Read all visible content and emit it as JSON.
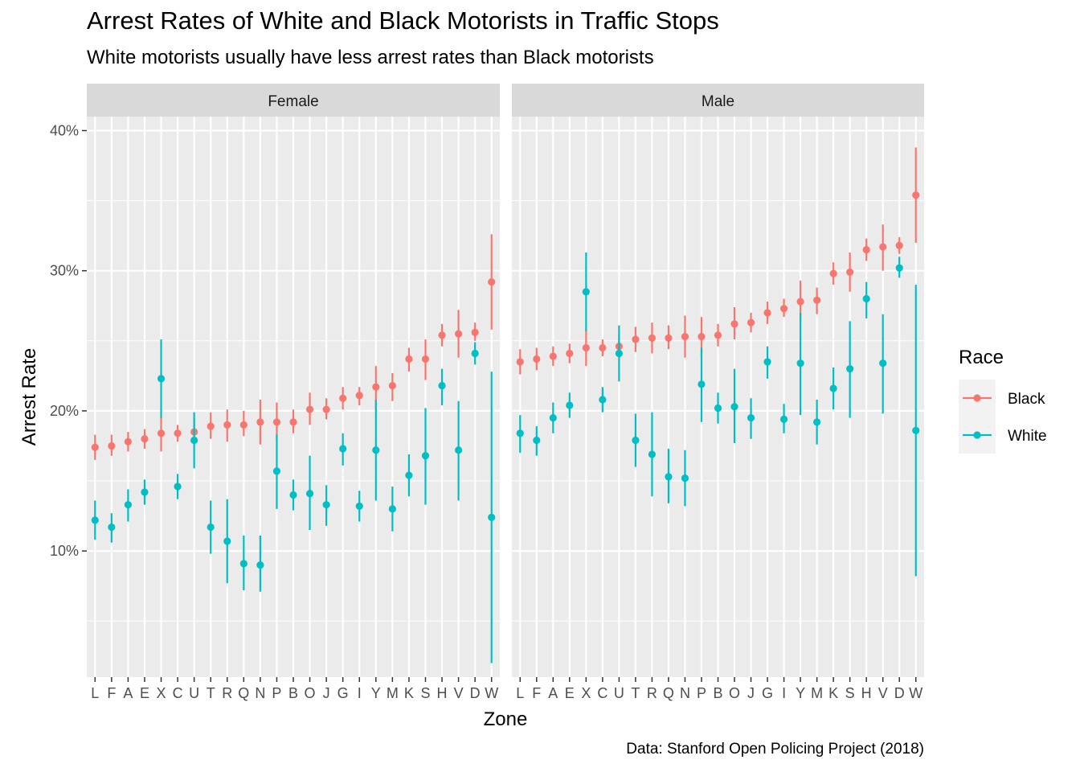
{
  "header": {
    "title": "Arrest Rates of White and Black Motorists in Traffic Stops",
    "subtitle": "White motorists usually have less arrest rates than Black motorists"
  },
  "caption": "Data: Stanford Open Policing Project (2018)",
  "legend": {
    "title": "Race",
    "position": "right",
    "items": [
      {
        "label": "Black",
        "color": "#F8766D"
      },
      {
        "label": "White",
        "color": "#00BFC4"
      }
    ]
  },
  "chart_data": {
    "type": "pointrange",
    "xlabel": "Zone",
    "ylabel": "Arrest Rate",
    "ylim": [
      0.01,
      0.41
    ],
    "y_ticks": [
      0.1,
      0.2,
      0.3,
      0.4
    ],
    "y_tick_labels": [
      "10%",
      "20%",
      "30%",
      "40%"
    ],
    "grid": true,
    "categories": [
      "L",
      "F",
      "A",
      "E",
      "X",
      "C",
      "U",
      "T",
      "R",
      "Q",
      "N",
      "P",
      "B",
      "O",
      "J",
      "G",
      "I",
      "Y",
      "M",
      "K",
      "S",
      "H",
      "V",
      "D",
      "W"
    ],
    "panels": [
      {
        "name": "Female",
        "series": [
          {
            "name": "Black",
            "color": "#F8766D",
            "values": [
              0.174,
              0.175,
              0.178,
              0.18,
              0.184,
              0.184,
              0.185,
              0.189,
              0.19,
              0.19,
              0.192,
              0.192,
              0.192,
              0.201,
              0.201,
              0.209,
              0.211,
              0.217,
              0.218,
              0.237,
              0.237,
              0.254,
              0.255,
              0.256,
              0.292
            ],
            "lower": [
              0.165,
              0.168,
              0.171,
              0.173,
              0.171,
              0.178,
              0.177,
              0.18,
              0.178,
              0.182,
              0.176,
              0.178,
              0.184,
              0.19,
              0.194,
              0.201,
              0.204,
              0.201,
              0.207,
              0.228,
              0.222,
              0.246,
              0.238,
              0.25,
              0.258
            ],
            "upper": [
              0.183,
              0.183,
              0.185,
              0.187,
              0.197,
              0.19,
              0.194,
              0.199,
              0.201,
              0.2,
              0.208,
              0.206,
              0.201,
              0.213,
              0.209,
              0.217,
              0.217,
              0.232,
              0.227,
              0.245,
              0.251,
              0.262,
              0.272,
              0.263,
              0.326
            ]
          },
          {
            "name": "White",
            "color": "#00BFC4",
            "values": [
              0.122,
              0.117,
              0.133,
              0.142,
              0.223,
              0.146,
              0.179,
              0.117,
              0.107,
              0.091,
              0.09,
              0.157,
              0.14,
              0.141,
              0.133,
              0.173,
              0.132,
              0.172,
              0.13,
              0.154,
              0.168,
              0.218,
              0.172,
              0.241,
              0.124
            ],
            "lower": [
              0.108,
              0.106,
              0.121,
              0.133,
              0.195,
              0.137,
              0.159,
              0.098,
              0.077,
              0.072,
              0.071,
              0.13,
              0.129,
              0.115,
              0.118,
              0.161,
              0.121,
              0.136,
              0.114,
              0.139,
              0.133,
              0.204,
              0.136,
              0.233,
              0.02
            ],
            "upper": [
              0.136,
              0.127,
              0.144,
              0.151,
              0.251,
              0.155,
              0.199,
              0.136,
              0.137,
              0.111,
              0.111,
              0.183,
              0.151,
              0.168,
              0.147,
              0.184,
              0.143,
              0.208,
              0.146,
              0.169,
              0.202,
              0.23,
              0.207,
              0.249,
              0.228
            ]
          }
        ]
      },
      {
        "name": "Male",
        "series": [
          {
            "name": "Black",
            "color": "#F8766D",
            "values": [
              0.235,
              0.237,
              0.239,
              0.241,
              0.245,
              0.245,
              0.246,
              0.251,
              0.252,
              0.252,
              0.253,
              0.253,
              0.254,
              0.262,
              0.263,
              0.27,
              0.273,
              0.278,
              0.279,
              0.298,
              0.299,
              0.315,
              0.317,
              0.318,
              0.354
            ],
            "lower": [
              0.226,
              0.229,
              0.232,
              0.234,
              0.232,
              0.239,
              0.238,
              0.242,
              0.241,
              0.244,
              0.238,
              0.239,
              0.246,
              0.251,
              0.256,
              0.262,
              0.267,
              0.263,
              0.269,
              0.29,
              0.285,
              0.307,
              0.3,
              0.312,
              0.32
            ],
            "upper": [
              0.244,
              0.245,
              0.246,
              0.248,
              0.258,
              0.251,
              0.255,
              0.26,
              0.263,
              0.261,
              0.268,
              0.267,
              0.262,
              0.274,
              0.27,
              0.278,
              0.28,
              0.293,
              0.288,
              0.306,
              0.313,
              0.323,
              0.333,
              0.324,
              0.388
            ]
          },
          {
            "name": "White",
            "color": "#00BFC4",
            "values": [
              0.184,
              0.179,
              0.195,
              0.204,
              0.285,
              0.208,
              0.241,
              0.179,
              0.169,
              0.153,
              0.152,
              0.219,
              0.202,
              0.203,
              0.195,
              0.235,
              0.194,
              0.234,
              0.192,
              0.216,
              0.23,
              0.28,
              0.234,
              0.302,
              0.186
            ],
            "lower": [
              0.17,
              0.168,
              0.184,
              0.195,
              0.257,
              0.199,
              0.221,
              0.16,
              0.139,
              0.134,
              0.132,
              0.192,
              0.191,
              0.177,
              0.18,
              0.223,
              0.184,
              0.197,
              0.176,
              0.201,
              0.195,
              0.266,
              0.198,
              0.295,
              0.082
            ],
            "upper": [
              0.197,
              0.189,
              0.206,
              0.213,
              0.313,
              0.217,
              0.261,
              0.198,
              0.199,
              0.173,
              0.172,
              0.245,
              0.213,
              0.23,
              0.209,
              0.246,
              0.205,
              0.27,
              0.208,
              0.231,
              0.264,
              0.292,
              0.269,
              0.31,
              0.29
            ]
          }
        ]
      }
    ]
  }
}
